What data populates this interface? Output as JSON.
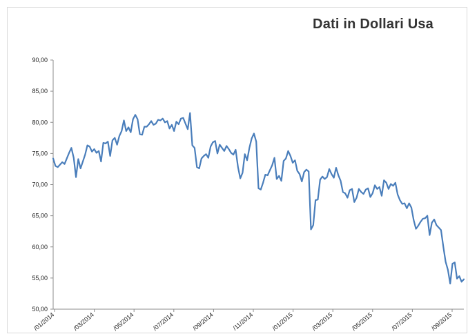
{
  "chart_data": {
    "type": "line",
    "title": "Dati in Dollari Usa",
    "xlabel": "",
    "ylabel": "",
    "ylim": [
      50,
      90
    ],
    "yticks": [
      "50,00",
      "55,00",
      "60,00",
      "65,00",
      "70,00",
      "75,00",
      "80,00",
      "85,00",
      "90,00"
    ],
    "xticks": [
      "/01/2014",
      "/03/2014",
      "/05/2014",
      "/07/2014",
      "/09/2014",
      "/11/2014",
      "/01/2015",
      "/03/2015",
      "/05/2015",
      "/07/2015",
      "/09/2015"
    ],
    "grid": false,
    "legend": "none",
    "colors": {
      "line": "#4a7ebb",
      "axis": "#8c8c8c"
    },
    "series": [
      {
        "values": [
          74.2,
          73.0,
          72.8,
          73.2,
          73.6,
          73.3,
          74.2,
          75.1,
          75.9,
          74.3,
          71.2,
          74.1,
          72.6,
          73.7,
          74.8,
          76.3,
          76.1,
          75.3,
          75.7,
          75.1,
          75.4,
          73.7,
          76.7,
          76.6,
          76.9,
          74.6,
          77.1,
          77.5,
          76.4,
          77.8,
          78.6,
          80.3,
          78.6,
          79.2,
          78.4,
          80.5,
          81.2,
          80.5,
          78.1,
          78.0,
          79.3,
          79.3,
          79.7,
          80.2,
          79.6,
          79.8,
          80.4,
          80.3,
          80.6,
          80.0,
          80.2,
          79.0,
          79.6,
          78.6,
          80.1,
          79.7,
          80.6,
          80.7,
          79.8,
          78.9,
          81.5,
          76.3,
          75.9,
          72.8,
          72.6,
          74.2,
          74.6,
          74.9,
          74.3,
          76.1,
          76.8,
          77.0,
          75.0,
          76.4,
          75.9,
          75.4,
          76.2,
          75.7,
          75.1,
          74.8,
          75.6,
          72.8,
          71.0,
          71.9,
          74.9,
          73.9,
          75.9,
          77.4,
          78.2,
          76.9,
          69.4,
          69.2,
          70.3,
          71.6,
          71.5,
          72.3,
          73.1,
          74.3,
          70.9,
          71.4,
          70.6,
          73.8,
          74.2,
          75.4,
          74.6,
          73.5,
          73.9,
          72.2,
          71.7,
          70.5,
          72.0,
          72.4,
          72.1,
          62.8,
          63.5,
          67.5,
          67.6,
          70.8,
          71.3,
          70.9,
          71.2,
          72.5,
          71.7,
          71.1,
          72.7,
          71.5,
          70.6,
          68.8,
          68.6,
          67.9,
          69.1,
          69.3,
          67.2,
          67.9,
          69.3,
          68.8,
          68.5,
          69.2,
          69.4,
          68.0,
          68.6,
          69.9,
          69.3,
          69.6,
          68.2,
          70.7,
          70.3,
          69.3,
          70.1,
          69.8,
          70.3,
          68.4,
          67.5,
          66.9,
          67.0,
          66.2,
          67.0,
          66.3,
          64.3,
          62.9,
          63.4,
          64.0,
          64.5,
          64.6,
          65.0,
          61.9,
          63.9,
          64.4,
          63.5,
          63.1,
          62.7,
          60.0,
          57.6,
          56.3,
          54.1,
          57.3,
          57.5,
          54.9,
          55.3,
          54.4,
          54.8
        ]
      }
    ]
  }
}
